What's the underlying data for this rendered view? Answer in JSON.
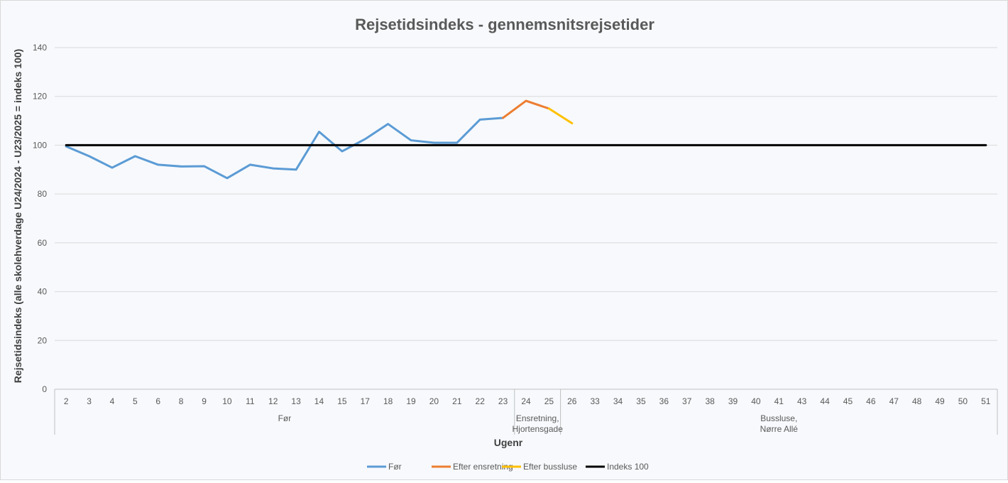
{
  "chart_data": {
    "type": "line",
    "title": "Rejsetidsindeks - gennemsnitsrejsetider",
    "xlabel": "Ugenr",
    "ylabel": "Rejsetidsindeks (alle skolehverdage U24/2024 - U23/2025 = indeks 100)",
    "ylim": [
      0,
      140
    ],
    "yticks": [
      0,
      20,
      40,
      60,
      80,
      100,
      120,
      140
    ],
    "grid": true,
    "legend_position": "bottom",
    "categories": [
      "2",
      "3",
      "4",
      "5",
      "6",
      "8",
      "9",
      "10",
      "11",
      "12",
      "13",
      "14",
      "15",
      "17",
      "18",
      "19",
      "20",
      "21",
      "22",
      "23",
      "24",
      "25",
      "26",
      "33",
      "34",
      "35",
      "36",
      "37",
      "38",
      "39",
      "40",
      "41",
      "43",
      "44",
      "45",
      "46",
      "47",
      "48",
      "49",
      "50",
      "51"
    ],
    "groups": [
      {
        "lines": [
          "Før"
        ],
        "start": 0,
        "end": 19
      },
      {
        "lines": [
          "Ensretning,",
          "Hjortensgade"
        ],
        "start": 20,
        "end": 21
      },
      {
        "lines": [
          "Bussluse,",
          "Nørre Allé"
        ],
        "start": 22,
        "end": 40
      }
    ],
    "series": [
      {
        "name": "Før",
        "color": "#5b9bd5",
        "values": [
          99.5,
          95.5,
          90.8,
          95.5,
          92.0,
          91.3,
          91.4,
          86.5,
          92.0,
          90.5,
          90.0,
          105.5,
          97.5,
          102.5,
          108.7,
          102.0,
          101.0,
          101.0,
          110.5,
          111.2,
          null,
          null,
          null,
          null,
          null,
          null,
          null,
          null,
          null,
          null,
          null,
          null,
          null,
          null,
          null,
          null,
          null,
          null,
          null,
          null,
          null
        ]
      },
      {
        "name": "Efter ensretning",
        "color": "#ed7d31",
        "values": [
          null,
          null,
          null,
          null,
          null,
          null,
          null,
          null,
          null,
          null,
          null,
          null,
          null,
          null,
          null,
          null,
          null,
          null,
          null,
          111.2,
          118.2,
          115.0,
          null,
          null,
          null,
          null,
          null,
          null,
          null,
          null,
          null,
          null,
          null,
          null,
          null,
          null,
          null,
          null,
          null,
          null,
          null
        ]
      },
      {
        "name": "Efter bussluse",
        "color": "#ffc000",
        "values": [
          null,
          null,
          null,
          null,
          null,
          null,
          null,
          null,
          null,
          null,
          null,
          null,
          null,
          null,
          null,
          null,
          null,
          null,
          null,
          null,
          null,
          115.0,
          109.0,
          null,
          null,
          null,
          null,
          null,
          null,
          null,
          null,
          null,
          null,
          null,
          null,
          null,
          null,
          null,
          null,
          null,
          null
        ]
      },
      {
        "name": "Indeks 100",
        "color": "#000000",
        "values": [
          100,
          100,
          100,
          100,
          100,
          100,
          100,
          100,
          100,
          100,
          100,
          100,
          100,
          100,
          100,
          100,
          100,
          100,
          100,
          100,
          100,
          100,
          100,
          100,
          100,
          100,
          100,
          100,
          100,
          100,
          100,
          100,
          100,
          100,
          100,
          100,
          100,
          100,
          100,
          100,
          100
        ]
      }
    ]
  }
}
